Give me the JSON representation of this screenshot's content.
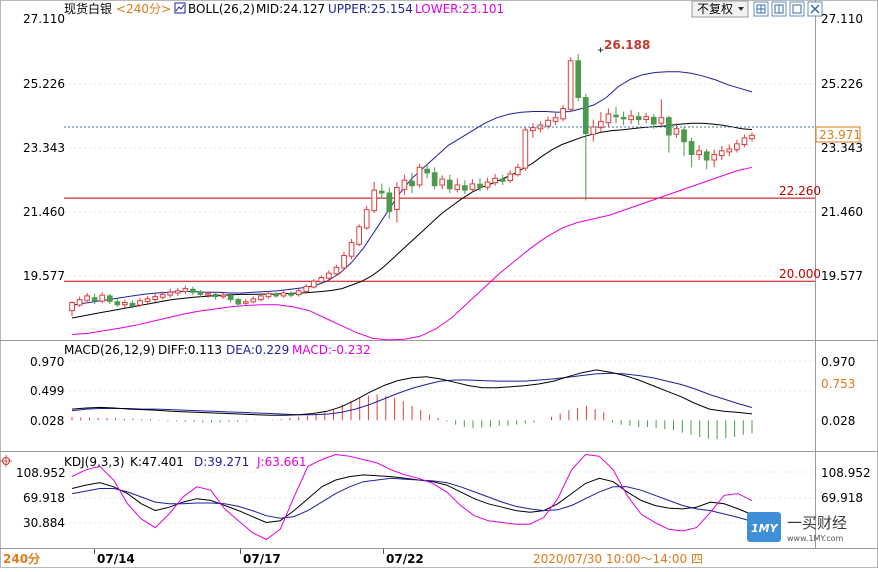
{
  "toolbar": {
    "instrument": "现货白银",
    "period": "<240分>",
    "indicator_label": "BOLL(26,2)",
    "mid": "MID:24.127",
    "upper": "UPPER:25.154",
    "lower": "LOWER:23.101",
    "restore": "不复权",
    "icons": [
      "grid-icon",
      "grid-alt-icon",
      "expand-icon",
      "close-icon"
    ]
  },
  "colors": {
    "up": "#e03c3c",
    "down": "#4c9a4c",
    "mid": "#000000",
    "upper": "#1f1f9c",
    "lower": "#e000e0",
    "hline": "#c00000",
    "last_price_bg": "#e07a1a"
  },
  "price_panel": {
    "y_ticks": [
      "27.110",
      "25.226",
      "23.343",
      "21.460",
      "19.577"
    ],
    "last_price": "23.971",
    "peak_label": "26.188",
    "hlines": [
      {
        "value": 22.26,
        "label": "22.260"
      },
      {
        "value": 20.0,
        "label": "20.000"
      }
    ]
  },
  "macd_panel": {
    "title": "MACD(26,12,9)",
    "diff": "DIFF:0.113",
    "dea": "DEA:0.229",
    "macd": "MACD:-0.232",
    "y_ticks": [
      "0.970",
      "0.499",
      "0.028"
    ],
    "current": "0.753"
  },
  "kdj_panel": {
    "title": "KDJ(9,3,3)",
    "k": "K:47.401",
    "d": "D:39.271",
    "j": "J:63.661",
    "y_ticks": [
      "108.952",
      "69.918",
      "30.884"
    ]
  },
  "x_axis": {
    "period_label": "240分",
    "dates": [
      "07/14",
      "07/17",
      "07/22"
    ],
    "cursor_time": "2020/07/30 10:00～14:00 四"
  },
  "watermark": {
    "logo_text": "1MY",
    "name": "一买财经",
    "url": "www.1MY.com"
  },
  "chart_data": [
    {
      "type": "candlestick",
      "title": "现货白银 BOLL(26,2)",
      "ylim": [
        18.4,
        27.11
      ],
      "candles": [
        [
          19.2,
          19.42,
          19.05,
          19.45
        ],
        [
          19.35,
          19.5,
          19.3,
          19.58
        ],
        [
          19.48,
          19.6,
          19.4,
          19.68
        ],
        [
          19.55,
          19.47,
          19.38,
          19.66
        ],
        [
          19.46,
          19.62,
          19.4,
          19.7
        ],
        [
          19.6,
          19.45,
          19.38,
          19.65
        ],
        [
          19.44,
          19.36,
          19.3,
          19.52
        ],
        [
          19.36,
          19.42,
          19.28,
          19.5
        ],
        [
          19.4,
          19.33,
          19.26,
          19.48
        ],
        [
          19.35,
          19.47,
          19.3,
          19.55
        ],
        [
          19.45,
          19.52,
          19.38,
          19.6
        ],
        [
          19.5,
          19.58,
          19.44,
          19.66
        ],
        [
          19.56,
          19.64,
          19.5,
          19.72
        ],
        [
          19.62,
          19.7,
          19.55,
          19.8
        ],
        [
          19.68,
          19.74,
          19.6,
          19.82
        ],
        [
          19.72,
          19.8,
          19.65,
          19.88
        ],
        [
          19.78,
          19.7,
          19.62,
          19.85
        ],
        [
          19.7,
          19.64,
          19.56,
          19.76
        ],
        [
          19.62,
          19.66,
          19.55,
          19.72
        ],
        [
          19.64,
          19.58,
          19.5,
          19.7
        ],
        [
          19.58,
          19.62,
          19.52,
          19.68
        ],
        [
          19.6,
          19.5,
          19.42,
          19.66
        ],
        [
          19.5,
          19.38,
          19.32,
          19.55
        ],
        [
          19.4,
          19.44,
          19.35,
          19.52
        ],
        [
          19.44,
          19.52,
          19.4,
          19.58
        ],
        [
          19.5,
          19.6,
          19.45,
          19.66
        ],
        [
          19.58,
          19.66,
          19.52,
          19.72
        ],
        [
          19.64,
          19.6,
          19.55,
          19.7
        ],
        [
          19.6,
          19.68,
          19.55,
          19.74
        ],
        [
          19.66,
          19.62,
          19.56,
          19.72
        ],
        [
          19.64,
          19.74,
          19.58,
          19.8
        ],
        [
          19.72,
          19.86,
          19.66,
          19.92
        ],
        [
          19.84,
          20.0,
          19.8,
          20.06
        ],
        [
          19.98,
          20.1,
          19.92,
          20.16
        ],
        [
          20.08,
          20.22,
          20.02,
          20.3
        ],
        [
          20.2,
          20.38,
          20.15,
          20.45
        ],
        [
          20.36,
          20.7,
          20.3,
          20.8
        ],
        [
          20.68,
          21.05,
          20.6,
          21.15
        ],
        [
          21.0,
          21.48,
          20.95,
          21.55
        ],
        [
          21.45,
          21.95,
          21.4,
          22.05
        ],
        [
          21.92,
          22.48,
          21.85,
          22.7
        ],
        [
          22.45,
          22.4,
          22.25,
          22.66
        ],
        [
          22.4,
          21.9,
          21.7,
          22.55
        ],
        [
          21.95,
          22.55,
          21.6,
          22.7
        ],
        [
          22.5,
          22.75,
          22.35,
          22.9
        ],
        [
          22.72,
          22.6,
          22.4,
          22.95
        ],
        [
          22.62,
          23.1,
          22.55,
          23.2
        ],
        [
          23.05,
          22.95,
          22.8,
          23.18
        ],
        [
          22.95,
          22.6,
          22.5,
          23.1
        ],
        [
          22.62,
          22.78,
          22.5,
          22.88
        ],
        [
          22.75,
          22.52,
          22.4,
          22.9
        ],
        [
          22.5,
          22.62,
          22.42,
          22.8
        ],
        [
          22.6,
          22.48,
          22.38,
          22.75
        ],
        [
          22.5,
          22.65,
          22.42,
          22.78
        ],
        [
          22.64,
          22.55,
          22.45,
          22.8
        ],
        [
          22.56,
          22.7,
          22.48,
          22.82
        ],
        [
          22.68,
          22.8,
          22.6,
          22.92
        ],
        [
          22.78,
          22.72,
          22.62,
          22.9
        ],
        [
          22.74,
          22.92,
          22.68,
          23.02
        ],
        [
          22.9,
          23.1,
          22.85,
          23.2
        ],
        [
          23.08,
          24.12,
          23.0,
          24.2
        ],
        [
          24.1,
          24.18,
          23.9,
          24.3
        ],
        [
          24.15,
          24.25,
          24.05,
          24.35
        ],
        [
          24.22,
          24.38,
          24.15,
          24.48
        ],
        [
          24.35,
          24.45,
          24.25,
          24.58
        ],
        [
          24.42,
          24.7,
          24.35,
          24.8
        ],
        [
          24.68,
          26.0,
          24.6,
          26.1
        ],
        [
          26.0,
          25.0,
          24.9,
          26.188
        ],
        [
          25.0,
          24.02,
          22.2,
          25.1
        ],
        [
          24.0,
          24.2,
          23.8,
          24.4
        ],
        [
          24.18,
          24.35,
          24.05,
          24.6
        ],
        [
          24.32,
          24.55,
          24.2,
          24.7
        ],
        [
          24.52,
          24.48,
          24.3,
          24.75
        ],
        [
          24.46,
          24.42,
          24.25,
          24.62
        ],
        [
          24.4,
          24.5,
          24.28,
          24.66
        ],
        [
          24.48,
          24.4,
          24.25,
          24.6
        ],
        [
          24.4,
          24.48,
          24.3,
          24.58
        ],
        [
          24.46,
          24.28,
          24.15,
          24.55
        ],
        [
          24.3,
          24.45,
          24.2,
          24.95
        ],
        [
          24.45,
          23.98,
          23.5,
          24.5
        ],
        [
          24.0,
          24.15,
          23.9,
          24.3
        ],
        [
          24.12,
          23.8,
          23.4,
          24.2
        ],
        [
          23.8,
          23.45,
          23.1,
          23.9
        ],
        [
          23.45,
          23.55,
          23.3,
          23.7
        ],
        [
          23.52,
          23.3,
          23.05,
          23.6
        ],
        [
          23.3,
          23.45,
          23.1,
          23.58
        ],
        [
          23.42,
          23.55,
          23.3,
          23.68
        ],
        [
          23.52,
          23.6,
          23.4,
          23.72
        ],
        [
          23.58,
          23.74,
          23.5,
          23.85
        ],
        [
          23.72,
          23.9,
          23.65,
          24.0
        ],
        [
          23.88,
          23.971,
          23.8,
          24.05
        ]
      ],
      "series": [
        {
          "name": "MID",
          "values": [
            19.0,
            19.05,
            19.1,
            19.15,
            19.2,
            19.25,
            19.3,
            19.35,
            19.4,
            19.45,
            19.5,
            19.53,
            19.56,
            19.58,
            19.6,
            19.62,
            19.63,
            19.64,
            19.64,
            19.65,
            19.65,
            19.66,
            19.67,
            19.68,
            19.7,
            19.72,
            19.75,
            19.8,
            19.9,
            20.0,
            20.15,
            20.35,
            20.6,
            20.85,
            21.1,
            21.35,
            21.6,
            21.85,
            22.05,
            22.25,
            22.42,
            22.56,
            22.66,
            22.78,
            22.9,
            23.05,
            23.2,
            23.4,
            23.58,
            23.72,
            23.82,
            23.92,
            24.0,
            24.06,
            24.1,
            24.12,
            24.15,
            24.18,
            24.2,
            24.22,
            24.25,
            24.28,
            24.3,
            24.3,
            24.28,
            24.25,
            24.2,
            24.15,
            24.127
          ]
        },
        {
          "name": "UPPER",
          "values": [
            19.35,
            19.4,
            19.45,
            19.5,
            19.55,
            19.6,
            19.65,
            19.68,
            19.7,
            19.72,
            19.72,
            19.7,
            19.7,
            19.68,
            19.68,
            19.7,
            19.72,
            19.74,
            19.78,
            19.82,
            19.88,
            20.0,
            20.2,
            20.5,
            20.9,
            21.4,
            21.9,
            22.4,
            22.8,
            23.1,
            23.4,
            23.7,
            23.9,
            24.1,
            24.3,
            24.45,
            24.55,
            24.6,
            24.62,
            24.62,
            24.6,
            24.62,
            24.7,
            24.8,
            25.0,
            25.3,
            25.5,
            25.62,
            25.68,
            25.7,
            25.7,
            25.66,
            25.58,
            25.48,
            25.35,
            25.25,
            25.154
          ]
        },
        {
          "name": "LOWER",
          "values": [
            18.55,
            18.58,
            18.65,
            18.72,
            18.8,
            18.9,
            19.0,
            19.1,
            19.18,
            19.24,
            19.3,
            19.34,
            19.36,
            19.36,
            19.3,
            19.2,
            19.0,
            18.8,
            18.6,
            18.45,
            18.4,
            18.42,
            18.5,
            18.7,
            19.0,
            19.4,
            19.8,
            20.2,
            20.55,
            20.9,
            21.2,
            21.45,
            21.6,
            21.7,
            21.8,
            21.95,
            22.1,
            22.25,
            22.4,
            22.55,
            22.7,
            22.85,
            23.0,
            23.101
          ]
        }
      ]
    },
    {
      "type": "macd",
      "title": "MACD(26,12,9)",
      "ylim": [
        -0.55,
        1.06
      ],
      "series": [
        {
          "name": "DIFF",
          "values": [
            0.2,
            0.22,
            0.23,
            0.22,
            0.2,
            0.19,
            0.18,
            0.16,
            0.15,
            0.14,
            0.13,
            0.12,
            0.11,
            0.1,
            0.09,
            0.09,
            0.1,
            0.12,
            0.16,
            0.24,
            0.36,
            0.5,
            0.62,
            0.71,
            0.76,
            0.78,
            0.74,
            0.68,
            0.62,
            0.58,
            0.58,
            0.6,
            0.62,
            0.65,
            0.7,
            0.78,
            0.85,
            0.9,
            0.86,
            0.8,
            0.72,
            0.62,
            0.52,
            0.42,
            0.3,
            0.2,
            0.16,
            0.14,
            0.113
          ]
        },
        {
          "name": "DEA",
          "values": [
            0.17,
            0.2,
            0.21,
            0.21,
            0.21,
            0.2,
            0.2,
            0.19,
            0.18,
            0.17,
            0.16,
            0.15,
            0.14,
            0.13,
            0.12,
            0.11,
            0.1,
            0.1,
            0.11,
            0.14,
            0.2,
            0.28,
            0.38,
            0.48,
            0.57,
            0.64,
            0.7,
            0.72,
            0.72,
            0.71,
            0.7,
            0.7,
            0.7,
            0.72,
            0.74,
            0.77,
            0.8,
            0.83,
            0.84,
            0.83,
            0.8,
            0.76,
            0.7,
            0.64,
            0.56,
            0.46,
            0.38,
            0.3,
            0.229
          ]
        },
        {
          "name": "MACD",
          "values": [
            0.06,
            0.05,
            0.05,
            0.04,
            0.04,
            0.04,
            0.03,
            0.03,
            0.02,
            0.02,
            -0.01,
            -0.02,
            -0.02,
            -0.03,
            -0.03,
            -0.04,
            -0.04,
            -0.04,
            -0.03,
            -0.03,
            -0.02,
            -0.01,
            0.0,
            0.01,
            0.02,
            0.04,
            0.06,
            0.08,
            0.1,
            0.14,
            0.2,
            0.28,
            0.34,
            0.4,
            0.44,
            0.46,
            0.44,
            0.4,
            0.34,
            0.26,
            0.18,
            0.1,
            0.04,
            -0.02,
            -0.08,
            -0.12,
            -0.14,
            -0.13,
            -0.12,
            -0.1,
            -0.1,
            -0.08,
            -0.06,
            -0.04,
            0.0,
            0.06,
            0.12,
            0.18,
            0.22,
            0.26,
            0.2,
            0.14,
            -0.04,
            -0.08,
            -0.1,
            -0.12,
            -0.12,
            -0.14,
            -0.16,
            -0.18,
            -0.22,
            -0.26,
            -0.3,
            -0.33,
            -0.34,
            -0.32,
            -0.3,
            -0.26,
            -0.232
          ]
        }
      ]
    },
    {
      "type": "line",
      "title": "KDJ(9,3,3)",
      "ylim": [
        8,
        121
      ],
      "series": [
        {
          "name": "K",
          "values": [
            78,
            82,
            85,
            80,
            72,
            60,
            52,
            56,
            62,
            66,
            64,
            58,
            52,
            45,
            38,
            40,
            52,
            66,
            80,
            88,
            92,
            94,
            93,
            92,
            90,
            88,
            86,
            82,
            74,
            66,
            60,
            56,
            52,
            50,
            52,
            60,
            72,
            84,
            90,
            86,
            74,
            64,
            58,
            55,
            54,
            56,
            62,
            60,
            54,
            47.401
          ]
        },
        {
          "name": "D",
          "values": [
            72,
            75,
            78,
            78,
            74,
            68,
            62,
            60,
            60,
            61,
            61,
            60,
            57,
            52,
            46,
            43,
            45,
            52,
            62,
            72,
            80,
            86,
            88,
            90,
            89,
            88,
            87,
            85,
            80,
            74,
            68,
            62,
            57,
            54,
            52,
            53,
            58,
            66,
            74,
            80,
            80,
            76,
            70,
            64,
            58,
            54,
            52,
            48,
            44,
            39.271
          ]
        },
        {
          "name": "J",
          "values": [
            92,
            100,
            104,
            88,
            60,
            42,
            32,
            48,
            68,
            80,
            76,
            54,
            40,
            26,
            18,
            30,
            68,
            104,
            112,
            118,
            116,
            112,
            108,
            100,
            94,
            90,
            84,
            74,
            58,
            46,
            40,
            38,
            36,
            36,
            44,
            66,
            100,
            118,
            116,
            100,
            70,
            48,
            38,
            30,
            28,
            32,
            50,
            70,
            72,
            63.661
          ]
        }
      ]
    }
  ]
}
